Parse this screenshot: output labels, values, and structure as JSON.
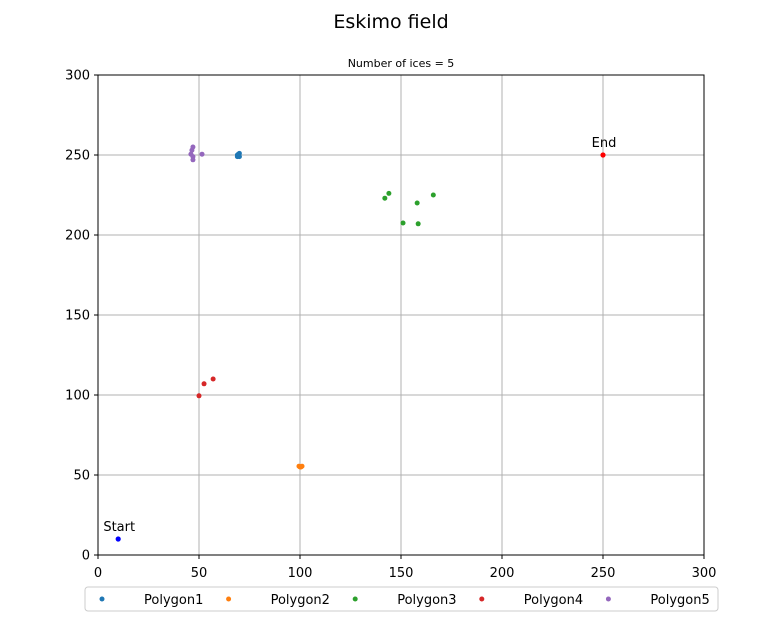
{
  "chart_data": {
    "type": "scatter",
    "title": "Eskimo field",
    "subtitle": "Number of ices = 5",
    "xlabel": "",
    "ylabel": "",
    "xlim": [
      0,
      300
    ],
    "ylim": [
      0,
      300
    ],
    "xticks": [
      0,
      50,
      100,
      150,
      200,
      250,
      300
    ],
    "yticks": [
      0,
      50,
      100,
      150,
      200,
      250,
      300
    ],
    "grid": true,
    "legend_position": "bottom-outside",
    "series": [
      {
        "name": "Polygon1",
        "color": "#1f77b4",
        "points": [
          [
            69,
            249
          ],
          [
            70,
            251
          ],
          [
            69,
            250
          ],
          [
            70,
            249
          ],
          [
            69.5,
            250.5
          ]
        ]
      },
      {
        "name": "Polygon2",
        "color": "#ff7f0e",
        "points": [
          [
            99.5,
            55.5
          ],
          [
            100.5,
            55
          ],
          [
            101,
            55.5
          ],
          [
            100,
            55
          ]
        ]
      },
      {
        "name": "Polygon3",
        "color": "#2ca02c",
        "points": [
          [
            144,
            226
          ],
          [
            142,
            223
          ],
          [
            151,
            207.5
          ],
          [
            158.5,
            207
          ],
          [
            166,
            225
          ],
          [
            158,
            220
          ]
        ]
      },
      {
        "name": "Polygon4",
        "color": "#d62728",
        "points": [
          [
            50,
            99.5
          ],
          [
            52.5,
            107
          ],
          [
            57,
            110
          ]
        ]
      },
      {
        "name": "Polygon5",
        "color": "#9467bd",
        "points": [
          [
            47,
            255
          ],
          [
            46.5,
            253
          ],
          [
            46,
            250.5
          ],
          [
            47,
            249
          ],
          [
            47,
            247
          ],
          [
            51.5,
            250.5
          ]
        ]
      }
    ],
    "annotations": [
      {
        "text": "Start",
        "x": 10,
        "y": 10,
        "color": "#0000ff"
      },
      {
        "text": "End",
        "x": 250,
        "y": 250,
        "color": "#ff0000"
      }
    ]
  }
}
